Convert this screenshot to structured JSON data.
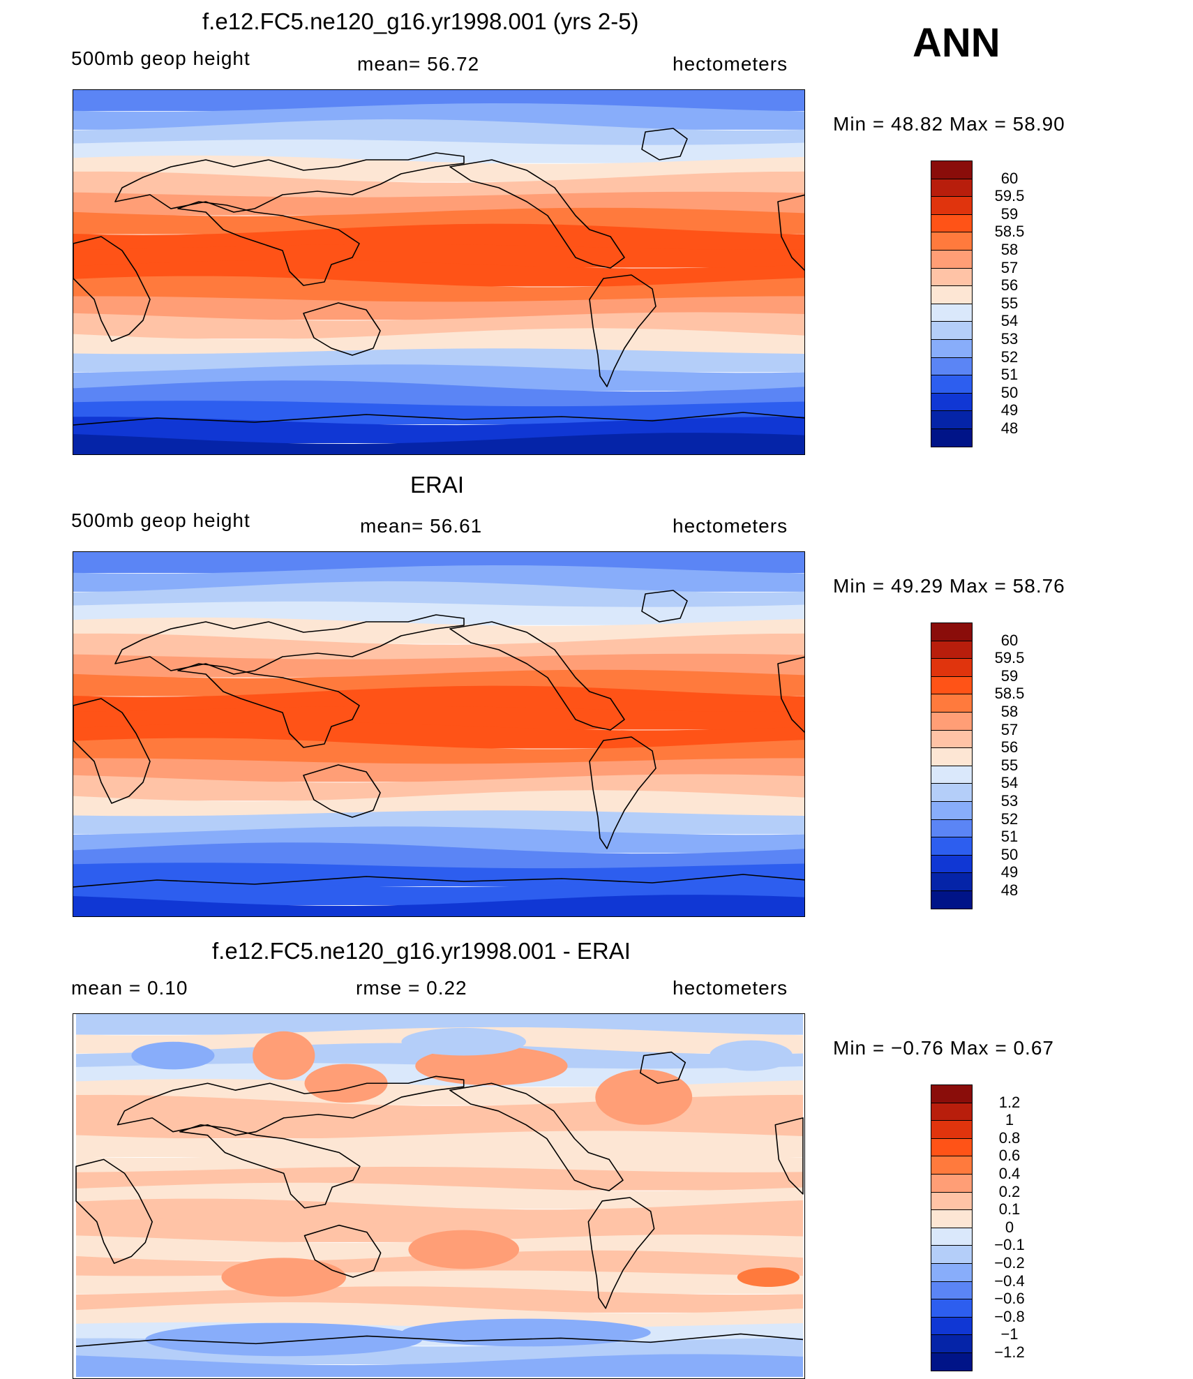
{
  "season": "ANN",
  "panels": [
    {
      "title": "f.e12.FC5.ne120_g16.yr1998.001 (yrs 2-5)",
      "left_label": "500mb geop height",
      "center_label": "mean=  56.72",
      "right_label": "hectometers",
      "minmax": "Min =   48.82  Max =   58.90",
      "colorbar": {
        "labels": [
          "60",
          "59.5",
          "59",
          "58.5",
          "58",
          "57",
          "56",
          "55",
          "54",
          "53",
          "52",
          "51",
          "50",
          "49",
          "48"
        ],
        "colors": [
          "#8a0d0a",
          "#b81e0c",
          "#e0340d",
          "#ff5317",
          "#ff7a3d",
          "#ff9e76",
          "#ffc3a6",
          "#fde6d4",
          "#dae8fb",
          "#b4cef9",
          "#88adfa",
          "#5b85f5",
          "#2d5eef",
          "#1037d4",
          "#0524a8",
          "#001488"
        ]
      },
      "bands": [
        "#0524a8",
        "#1037d4",
        "#2d5eef",
        "#5b85f5",
        "#88adfa",
        "#b4cef9",
        "#fde6d4",
        "#ffc3a6",
        "#ff9e76",
        "#ff7a3d",
        "#ff5317",
        "#ff5317",
        "#ff5317",
        "#ff7a3d",
        "#ff9e76",
        "#ffc3a6",
        "#fde6d4",
        "#dae8fb",
        "#b4cef9",
        "#88adfa",
        "#5b85f5"
      ]
    },
    {
      "title": "ERAI",
      "left_label": "500mb geop height",
      "center_label": "mean=  56.61",
      "right_label": "hectometers",
      "minmax": "Min =   49.29  Max =   58.76",
      "colorbar": {
        "labels": [
          "60",
          "59.5",
          "59",
          "58.5",
          "58",
          "57",
          "56",
          "55",
          "54",
          "53",
          "52",
          "51",
          "50",
          "49",
          "48"
        ],
        "colors": [
          "#8a0d0a",
          "#b81e0c",
          "#e0340d",
          "#ff5317",
          "#ff7a3d",
          "#ff9e76",
          "#ffc3a6",
          "#fde6d4",
          "#dae8fb",
          "#b4cef9",
          "#88adfa",
          "#5b85f5",
          "#2d5eef",
          "#1037d4",
          "#0524a8",
          "#001488"
        ]
      },
      "bands": [
        "#1037d4",
        "#2d5eef",
        "#2d5eef",
        "#5b85f5",
        "#88adfa",
        "#b4cef9",
        "#fde6d4",
        "#ffc3a6",
        "#ff9e76",
        "#ff7a3d",
        "#ff5317",
        "#ff5317",
        "#ff5317",
        "#ff7a3d",
        "#ff9e76",
        "#ffc3a6",
        "#fde6d4",
        "#dae8fb",
        "#b4cef9",
        "#88adfa",
        "#5b85f5"
      ]
    },
    {
      "title": "f.e12.FC5.ne120_g16.yr1998.001 - ERAI",
      "left_label": "mean =     0.10",
      "center_label": "rmse =     0.22",
      "right_label": "hectometers",
      "minmax": "Min =   −0.76  Max =     0.67",
      "colorbar": {
        "labels": [
          "1.2",
          "1",
          "0.8",
          "0.6",
          "0.4",
          "0.2",
          "0.1",
          "0",
          "−0.1",
          "−0.2",
          "−0.4",
          "−0.6",
          "−0.8",
          "−1",
          "−1.2"
        ],
        "colors": [
          "#8a0d0a",
          "#b81e0c",
          "#e0340d",
          "#ff5317",
          "#ff7a3d",
          "#ff9e76",
          "#ffc3a6",
          "#fde6d4",
          "#dae8fb",
          "#b4cef9",
          "#88adfa",
          "#5b85f5",
          "#2d5eef",
          "#1037d4",
          "#0524a8",
          "#001488"
        ]
      },
      "bands": [
        "#88adfa",
        "#b4cef9",
        "#dae8fb",
        "#fde6d4",
        "#ffc3a6",
        "#fde6d4",
        "#ffc3a6",
        "#fde6d4",
        "#ffc3a6",
        "#ffc3a6",
        "#fde6d4",
        "#ffc3a6",
        "#fde6d4",
        "#fde6d4",
        "#ffc3a6",
        "#ffc3a6",
        "#fde6d4",
        "#dae8fb",
        "#b4cef9",
        "#fde6d4",
        "#b4cef9"
      ]
    }
  ]
}
